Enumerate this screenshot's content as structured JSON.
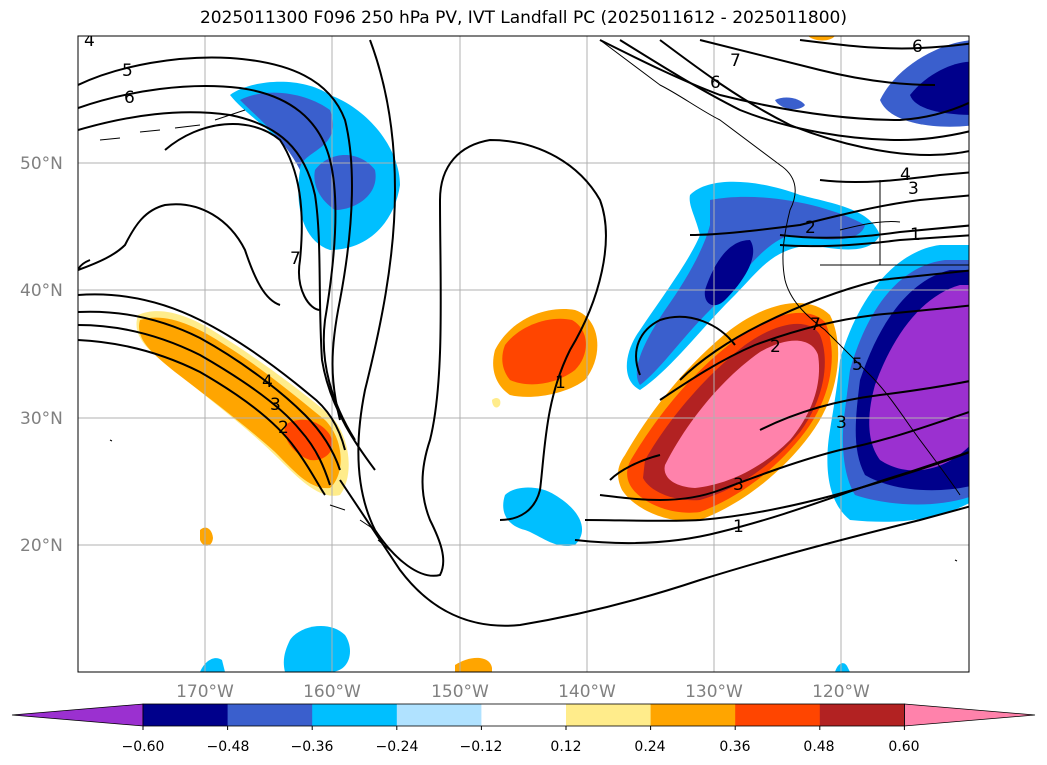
{
  "title": "2025011300 F096 250 hPa PV, IVT Landfall PC (2025011612 - 2025011800)",
  "lat_labels": [
    "50°N",
    "40°N",
    "30°N",
    "20°N"
  ],
  "lon_labels": [
    "170°W",
    "160°W",
    "150°W",
    "140°W",
    "130°W",
    "120°W"
  ],
  "colorbar": {
    "ticks": [
      "−0.60",
      "−0.48",
      "−0.36",
      "−0.24",
      "−0.12",
      "0.12",
      "0.24",
      "0.36",
      "0.48",
      "0.60"
    ],
    "colors": [
      "#9b30d0",
      "#00008b",
      "#3a5fcd",
      "#00bfff",
      "#b0e2ff",
      "#ffffff",
      "#ffec8b",
      "#ffa500",
      "#ff4500",
      "#b22222",
      "#ff82ab"
    ],
    "extend": "both"
  },
  "contour_labels": [
    "5",
    "6",
    "7",
    "6",
    "7",
    "6",
    "4",
    "3",
    "2",
    "1",
    "7",
    "4",
    "3",
    "2",
    "1",
    "2",
    "3",
    "5",
    "1",
    "3",
    "4"
  ]
}
